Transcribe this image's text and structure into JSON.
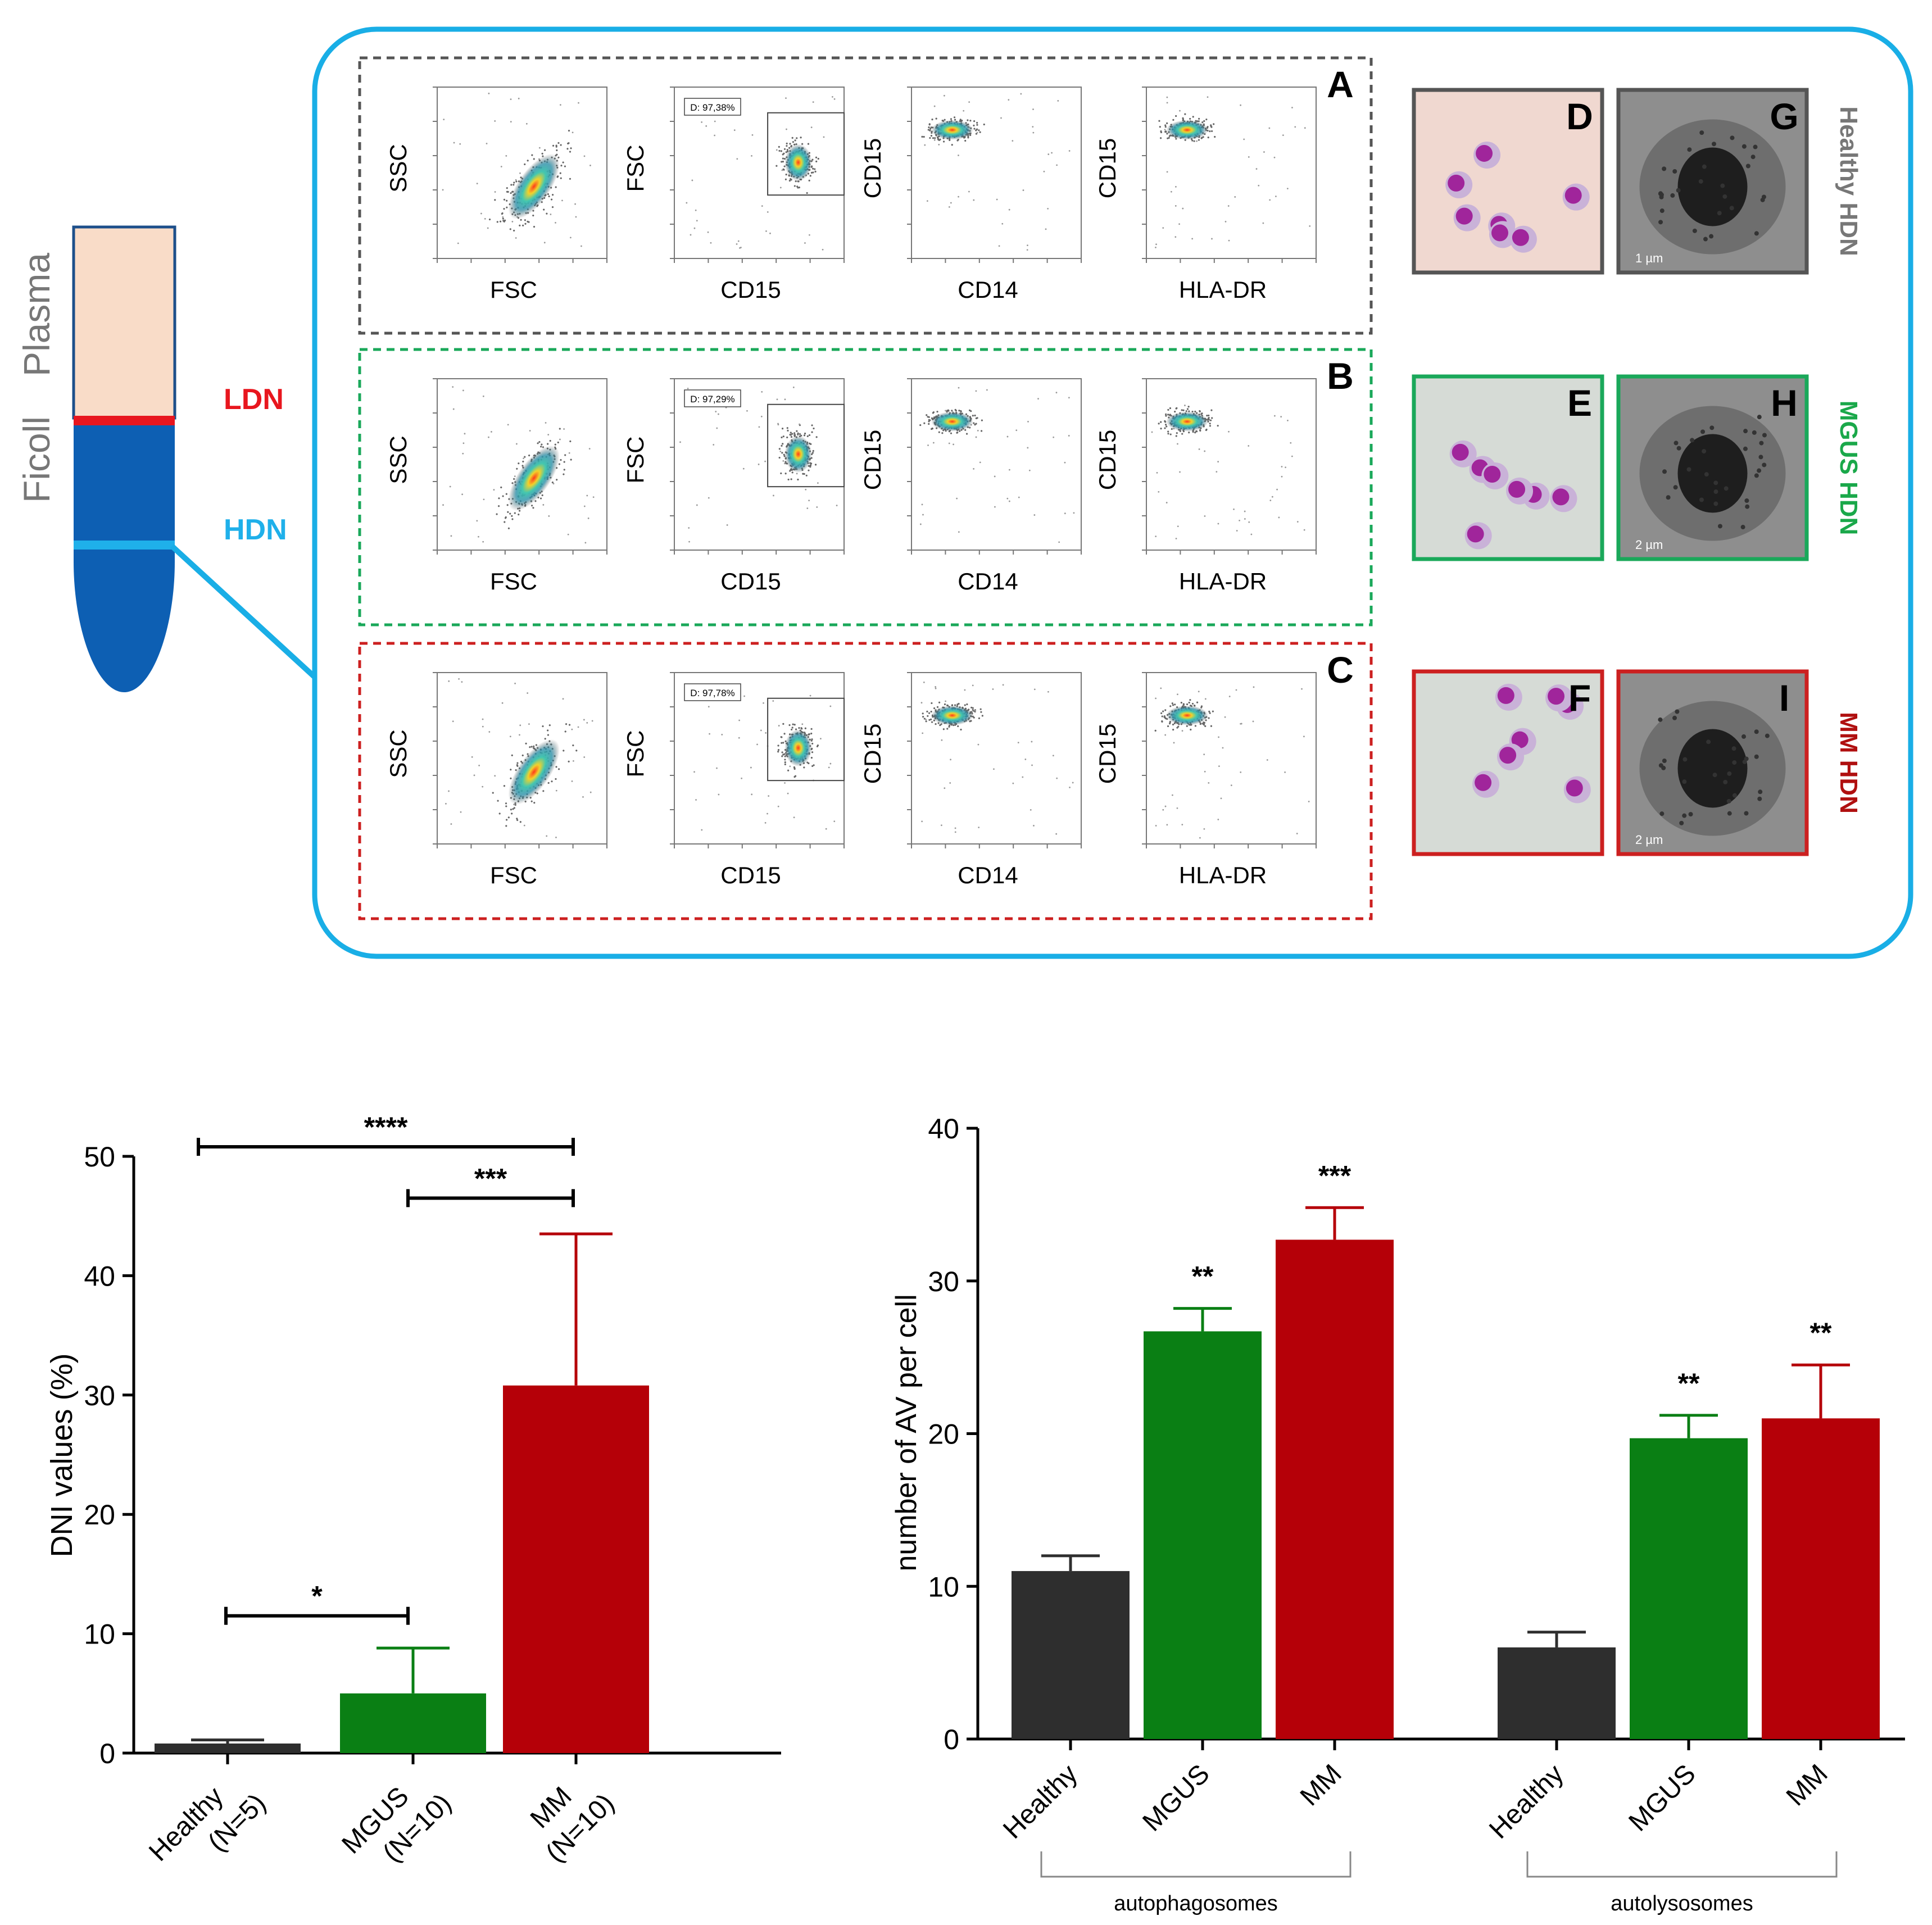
{
  "colors": {
    "healthy": "#2e2e2e",
    "mgus": "#0a7f14",
    "mm": "#b50008",
    "frame": "#19aee6",
    "tube_top": "#f9dcc8",
    "tube_body": "#0d5fb3",
    "ldn_band": "#e8161e",
    "hdn_band": "#1fb0ea",
    "panel_a": "#555555",
    "panel_b": "#1aa85a",
    "panel_c": "#cc2020",
    "blood_bg": "#d6dbd6",
    "em_bg": "#8e8e8e"
  },
  "tube": {
    "plasma_label": "Plasma",
    "ficoll_label": "Ficoll",
    "ldn_label": "LDN",
    "hdn_label": "HDN"
  },
  "flow_panels": [
    {
      "letter": "A",
      "gate": "D: 97,38%",
      "plots": [
        {
          "x_label": "FSC",
          "y_label": "SSC"
        },
        {
          "x_label": "CD15",
          "y_label": "FSC"
        },
        {
          "x_label": "CD14",
          "y_label": "CD15"
        },
        {
          "x_label": "HLA-DR",
          "y_label": "CD15"
        }
      ]
    },
    {
      "letter": "B",
      "gate": "D: 97,29%",
      "plots": [
        {
          "x_label": "FSC",
          "y_label": "SSC"
        },
        {
          "x_label": "CD15",
          "y_label": "FSC"
        },
        {
          "x_label": "CD14",
          "y_label": "CD15"
        },
        {
          "x_label": "HLA-DR",
          "y_label": "CD15"
        }
      ]
    },
    {
      "letter": "C",
      "gate": "D: 97,78%",
      "plots": [
        {
          "x_label": "FSC",
          "y_label": "SSC"
        },
        {
          "x_label": "CD15",
          "y_label": "FSC"
        },
        {
          "x_label": "CD14",
          "y_label": "CD15"
        },
        {
          "x_label": "HLA-DR",
          "y_label": "CD15"
        }
      ]
    }
  ],
  "micrographs": {
    "rows": [
      {
        "blood": "D",
        "em": "G",
        "label": "Healthy HDN",
        "scale": "1 µm"
      },
      {
        "blood": "E",
        "em": "H",
        "label": "MGUS HDN",
        "scale": "2 µm"
      },
      {
        "blood": "F",
        "em": "I",
        "label": "MM HDN",
        "scale": "2 µm"
      }
    ]
  },
  "chart_data": [
    {
      "type": "bar",
      "title": "",
      "xlabel": "",
      "ylabel": "DNI values (%)",
      "ylim": [
        0,
        50
      ],
      "yticks": [
        0,
        10,
        20,
        30,
        40,
        50
      ],
      "categories": [
        "Healthy\n(N=5)",
        "MGUS\n(N=10)",
        "MM\n(N=10)"
      ],
      "values": [
        0.8,
        5.0,
        30.8
      ],
      "errors": [
        0.3,
        3.8,
        12.7
      ],
      "significance": [
        {
          "from": 0,
          "to": 1,
          "label": "*",
          "y": 11.5
        },
        {
          "from": 1,
          "to": 2,
          "label": "***",
          "y": 46.5
        },
        {
          "from": 0,
          "to": 2,
          "label": "****",
          "y": 50.8
        }
      ]
    },
    {
      "type": "bar",
      "title": "",
      "xlabel": "",
      "ylabel": "number of AV per cell",
      "ylim": [
        0,
        40
      ],
      "yticks": [
        0,
        10,
        20,
        30,
        40
      ],
      "groups": [
        {
          "name": "autophagosomes",
          "categories": [
            "Healthy",
            "MGUS",
            "MM"
          ],
          "values": [
            11.0,
            26.7,
            32.7
          ],
          "errors": [
            1.0,
            1.5,
            2.1
          ],
          "stars": [
            "",
            "**",
            "***"
          ]
        },
        {
          "name": "autolysosomes",
          "categories": [
            "Healthy",
            "MGUS",
            "MM"
          ],
          "values": [
            6.0,
            19.7,
            21.0
          ],
          "errors": [
            1.0,
            1.5,
            3.5
          ],
          "stars": [
            "",
            "**",
            "**"
          ]
        }
      ]
    }
  ]
}
